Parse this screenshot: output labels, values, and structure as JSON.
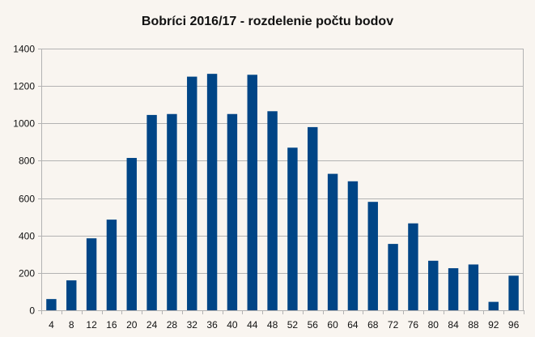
{
  "colors": {
    "background": "#f9f5f0",
    "bar": "#004586",
    "grid": "#b3b3b3",
    "axis": "#b3b3b3"
  },
  "chart_data": {
    "type": "bar",
    "title": "Bobríci 2016/17 - rozdelenie počtu bodov",
    "xlabel": "",
    "ylabel": "",
    "categories": [
      "4",
      "8",
      "12",
      "16",
      "20",
      "24",
      "28",
      "32",
      "36",
      "40",
      "44",
      "48",
      "52",
      "56",
      "60",
      "64",
      "68",
      "72",
      "76",
      "80",
      "84",
      "88",
      "92",
      "96"
    ],
    "values": [
      60,
      160,
      385,
      485,
      815,
      1045,
      1050,
      1250,
      1265,
      1050,
      1260,
      1065,
      870,
      980,
      730,
      690,
      580,
      355,
      465,
      265,
      225,
      245,
      45,
      185
    ],
    "ylim": [
      0,
      1400
    ],
    "yticks": [
      0,
      200,
      400,
      600,
      800,
      1000,
      1200,
      1400
    ],
    "grid": true,
    "legend": false
  }
}
